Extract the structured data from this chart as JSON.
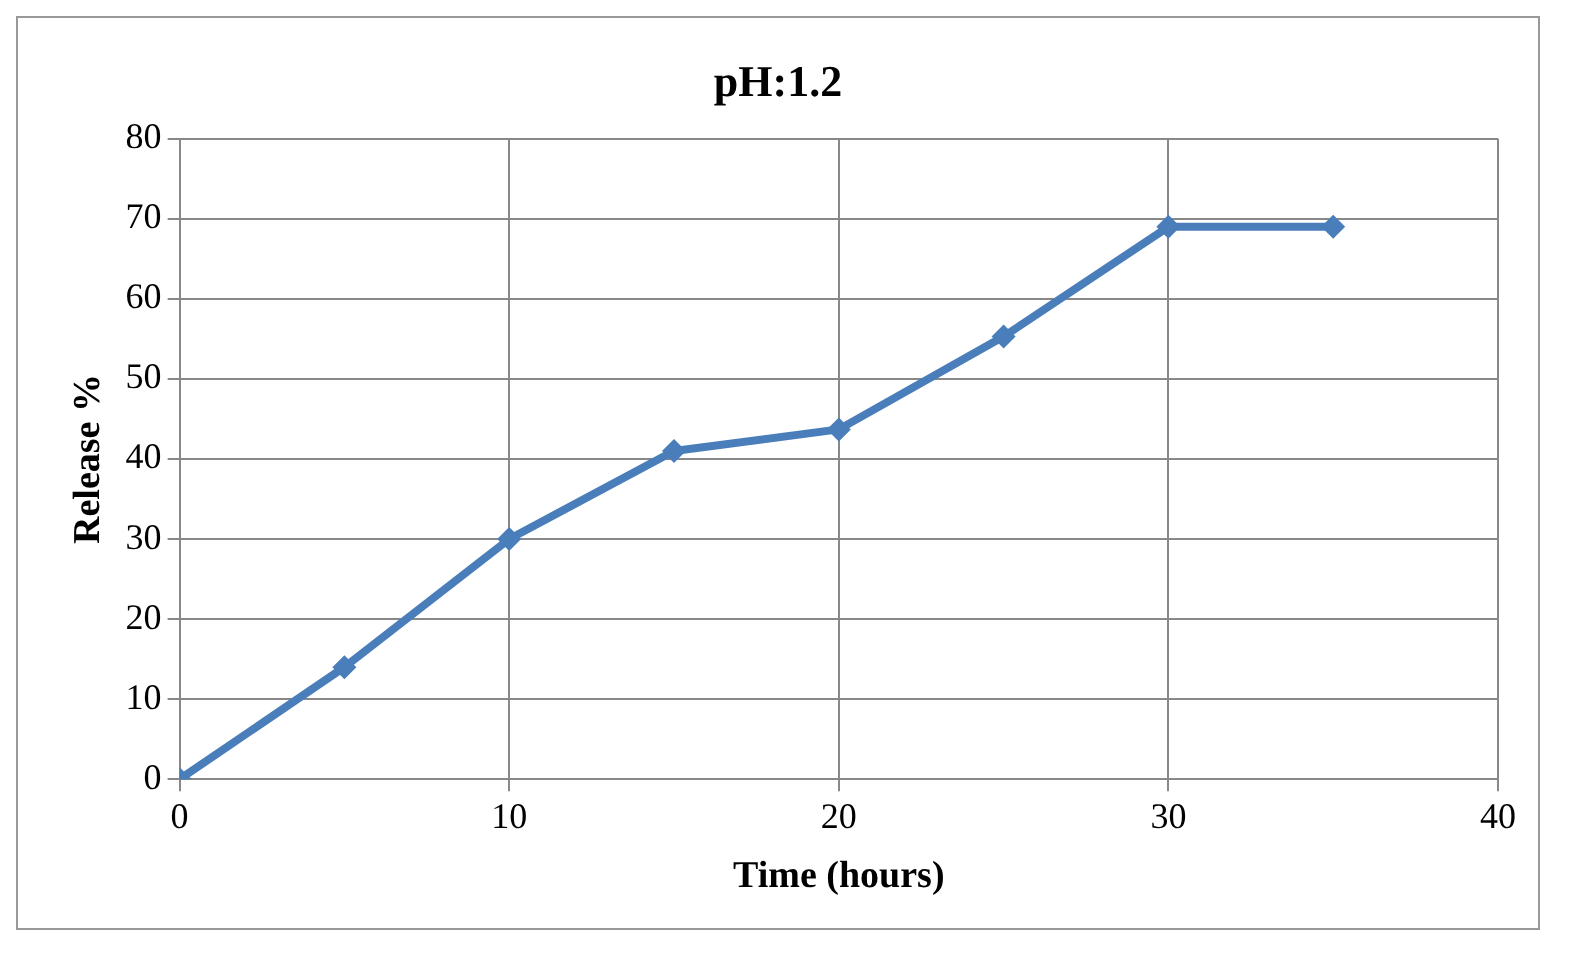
{
  "chart_data": {
    "type": "line",
    "title": "pH:1.2",
    "xlabel": "Time (hours)",
    "ylabel": "Release %",
    "x": [
      0,
      5,
      10,
      15,
      20,
      25,
      30,
      35
    ],
    "series": [
      {
        "color": "#4a7ebb",
        "values": [
          0,
          14,
          30,
          41,
          43.7,
          55.3,
          69,
          69
        ]
      }
    ],
    "xlim": [
      0,
      40
    ],
    "xticks": [
      0,
      10,
      20,
      30,
      40
    ],
    "ylim": [
      0,
      80
    ],
    "yticks": [
      0,
      10,
      20,
      30,
      40,
      50,
      60,
      70,
      80
    ],
    "grid": true,
    "legend": false,
    "marker": "diamond",
    "line_style": "solid"
  }
}
